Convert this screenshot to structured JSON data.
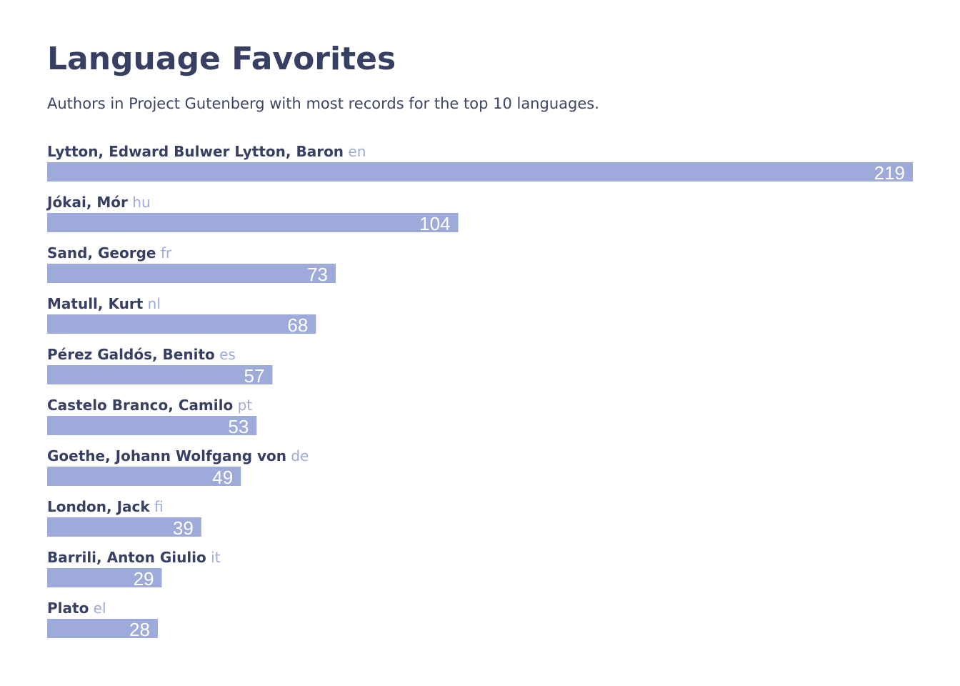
{
  "chart_data": {
    "type": "bar",
    "orientation": "horizontal",
    "title": "Language Favorites",
    "subtitle": "Authors in Project Gutenberg with most records for the top 10 languages.",
    "categories": [
      "Lytton, Edward Bulwer Lytton, Baron",
      "Jókai, Mór",
      "Sand, George",
      "Matull, Kurt",
      "Pérez Galdós, Benito",
      "Castelo Branco, Camilo",
      "Goethe, Johann Wolfgang von",
      "London, Jack",
      "Barrili, Anton Giulio",
      "Plato"
    ],
    "languages": [
      "en",
      "hu",
      "fr",
      "nl",
      "es",
      "pt",
      "de",
      "fi",
      "it",
      "el"
    ],
    "values": [
      219,
      104,
      73,
      68,
      57,
      53,
      49,
      39,
      29,
      28
    ],
    "xlabel": "",
    "ylabel": "",
    "xlim": [
      0,
      219
    ],
    "grid": false,
    "legend": "none",
    "colors": {
      "bar": "#9eaad9",
      "title": "#373f63",
      "author_label": "#373f63",
      "language_label": "#9eaad9",
      "value_label": "#ffffff",
      "background": "#ffffff"
    }
  }
}
